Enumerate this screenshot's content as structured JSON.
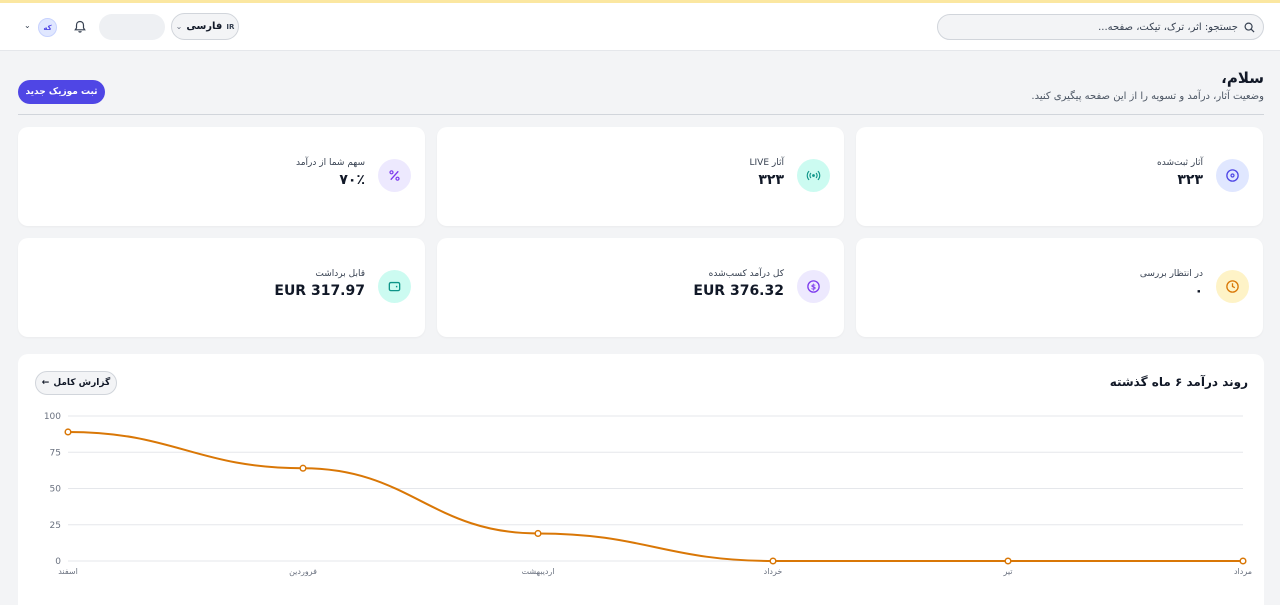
{
  "header": {
    "search_placeholder": "جستجو: اثر، ترک، تیکت، صفحه...",
    "language_code": "IR",
    "language_label": "فارسی",
    "avatar_text": "که"
  },
  "greeting": {
    "title": "سلام،",
    "subtitle": "وضعیت آثار، درآمد و تسویه را از این صفحه پیگیری کنید.",
    "new_button": "ثبت موزیک جدید"
  },
  "stats": [
    {
      "label": "آثار ثبت‌شده",
      "value": "۳۲۳",
      "icon": "disc-icon",
      "color": "#e0e7ff",
      "icon_color": "#4f46e5"
    },
    {
      "label": "آثار LIVE",
      "value": "۳۲۳",
      "icon": "broadcast-icon",
      "color": "#ccfbf1",
      "icon_color": "#0d9488"
    },
    {
      "label": "سهم شما از درآمد",
      "value": "۷۰٪",
      "icon": "percent-icon",
      "color": "#ede9fe",
      "icon_color": "#7c3aed"
    },
    {
      "label": "در انتظار بررسی",
      "value": "۰",
      "icon": "clock-icon",
      "color": "#fef3c7",
      "icon_color": "#d97706"
    },
    {
      "label": "کل درآمد کسب‌شده",
      "value": "EUR 376.32",
      "icon": "dollar-icon",
      "color": "#ede9fe",
      "icon_color": "#7c3aed"
    },
    {
      "label": "قابل برداشت",
      "value": "EUR 317.97",
      "icon": "wallet-icon",
      "color": "#ccfbf1",
      "icon_color": "#0d9488"
    }
  ],
  "chart_section": {
    "title": "روند درآمد ۶ ماه گذشته",
    "report_button": "گزارش کامل"
  },
  "chart_data": {
    "type": "line",
    "categories": [
      "اسفند",
      "فروردین",
      "اردیبهشت",
      "خرداد",
      "تیر",
      "مرداد"
    ],
    "values": [
      89,
      64,
      19,
      0,
      0,
      0
    ],
    "yticks": [
      0,
      25,
      50,
      75,
      100
    ],
    "ylim": [
      0,
      100
    ],
    "grid": true,
    "line_color": "#d97706"
  }
}
